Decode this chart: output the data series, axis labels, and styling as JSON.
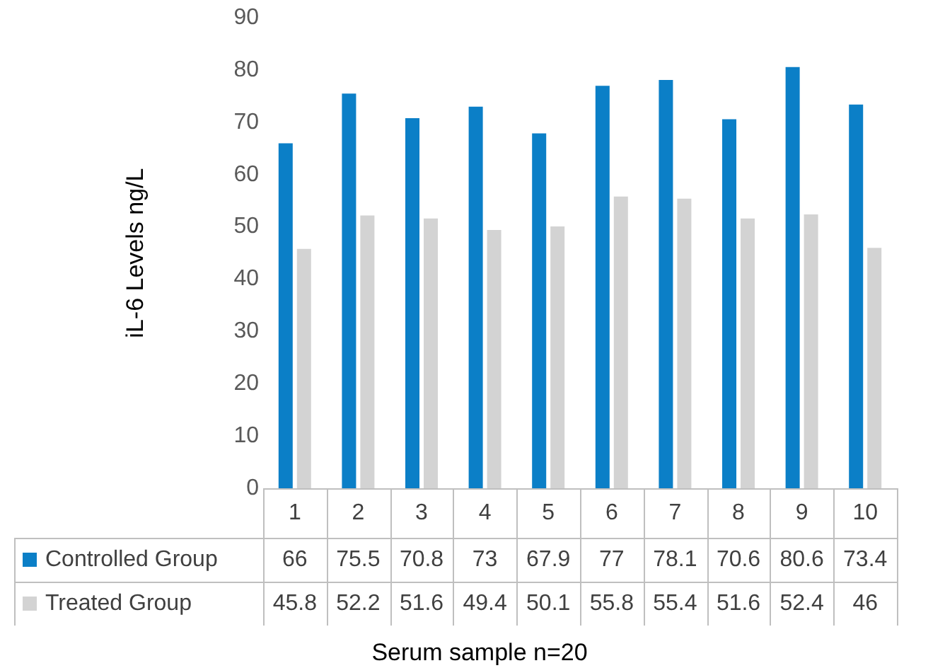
{
  "chart_data": {
    "type": "bar",
    "xlabel": "Serum sample n=20",
    "ylabel": "iL-6 Levels ng/L",
    "categories": [
      "1",
      "2",
      "3",
      "4",
      "5",
      "6",
      "7",
      "8",
      "9",
      "10"
    ],
    "series": [
      {
        "name": "Controlled Group",
        "color": "#0b7fc7",
        "values": [
          66,
          75.5,
          70.8,
          73,
          67.9,
          77,
          78.1,
          70.6,
          80.6,
          73.4
        ]
      },
      {
        "name": "Treated Group",
        "color": "#d3d3d3",
        "values": [
          45.8,
          52.2,
          51.6,
          49.4,
          50.1,
          55.8,
          55.4,
          51.6,
          52.4,
          46
        ]
      }
    ],
    "ylim": [
      0,
      90
    ],
    "yticks": [
      0,
      10,
      20,
      30,
      40,
      50,
      60,
      70,
      80,
      90
    ],
    "grid": false,
    "legend": "bottom",
    "data_labels": true
  }
}
